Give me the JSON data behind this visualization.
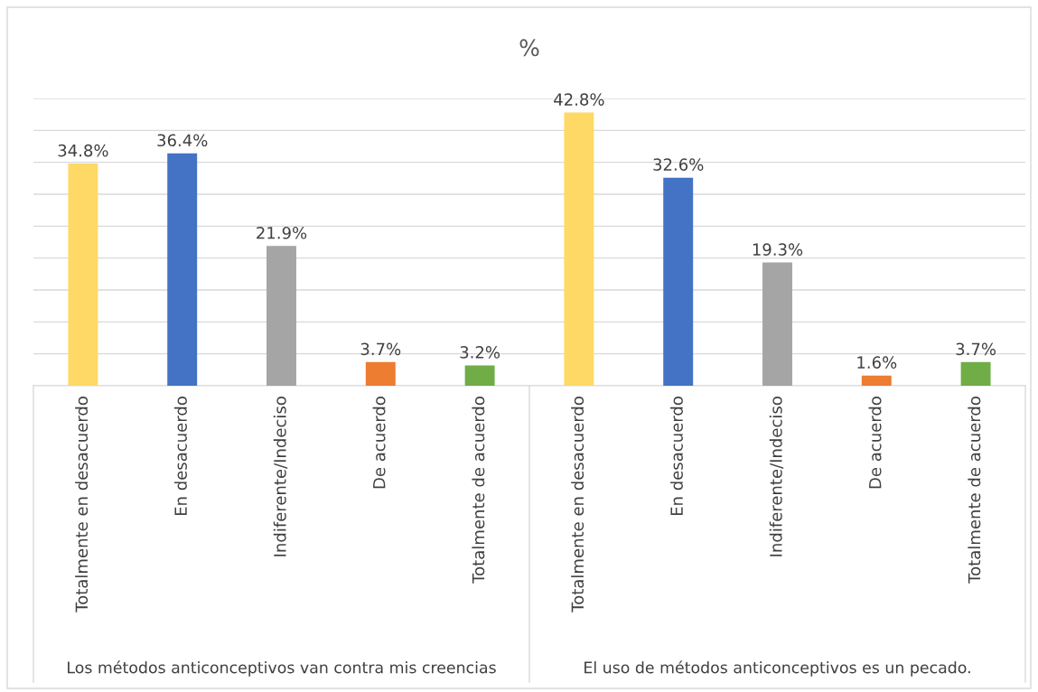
{
  "chart_data": {
    "type": "bar",
    "title": "%",
    "categories": [
      "Totalmente en desacuerdo",
      "En desacuerdo",
      "Indiferente/Indeciso",
      "De acuerdo",
      "Totalmente de acuerdo",
      "Totalmente en desacuerdo",
      "En desacuerdo",
      "Indiferente/Indeciso",
      "De acuerdo",
      "Totalmente de acuerdo"
    ],
    "values": [
      34.8,
      36.4,
      21.9,
      3.7,
      3.2,
      42.8,
      32.6,
      19.3,
      1.6,
      3.7
    ],
    "value_labels": [
      "34.8%",
      "36.4%",
      "21.9%",
      "3.7%",
      "3.2%",
      "42.8%",
      "32.6%",
      "19.3%",
      "1.6%",
      "3.7%"
    ],
    "colors": [
      "#ffd966",
      "#4472c4",
      "#a5a5a5",
      "#ed7d31",
      "#70ad47",
      "#ffd966",
      "#4472c4",
      "#a5a5a5",
      "#ed7d31",
      "#70ad47"
    ],
    "annotations": [
      "Los métodos anticonceptivos van contra mis creencias",
      "El uso de métodos anticonceptivos es un pecado."
    ],
    "ylim": [
      0,
      45
    ],
    "yticks": [
      {
        "value": 0,
        "label": null
      },
      {
        "value": 5,
        "label": null
      },
      {
        "value": 10,
        "label": null
      },
      {
        "value": 15,
        "label": null
      },
      {
        "value": 20,
        "label": null
      },
      {
        "value": 25,
        "label": null
      },
      {
        "value": 30,
        "label": null
      },
      {
        "value": 35,
        "label": null
      },
      {
        "value": 40,
        "label": null
      },
      {
        "value": 45,
        "label": null
      }
    ],
    "grid": "y",
    "tick_labels": "x"
  }
}
